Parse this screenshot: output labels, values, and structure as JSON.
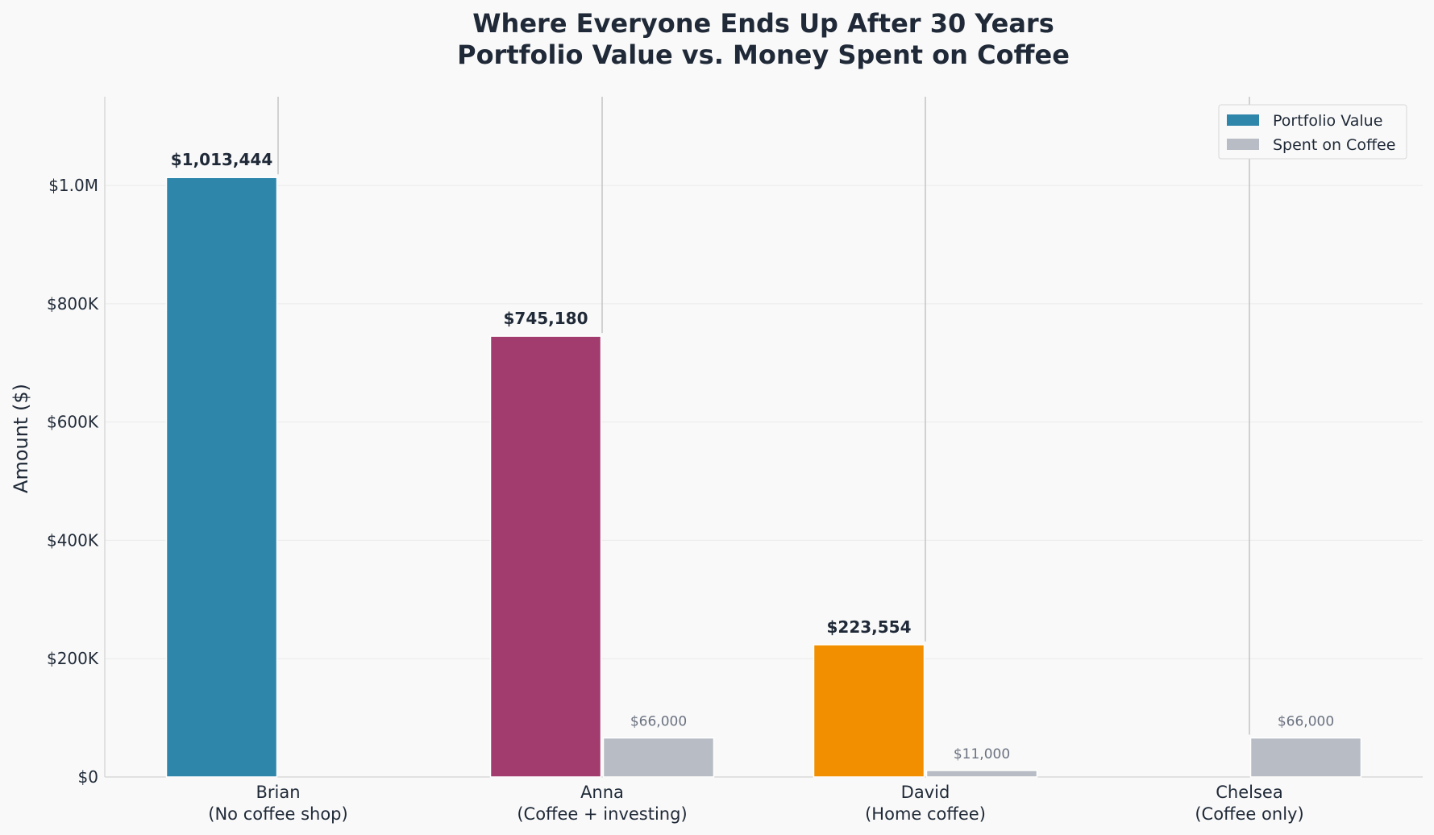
{
  "chart_data": {
    "type": "bar",
    "title_lines": [
      "Where Everyone Ends Up After 30 Years",
      "Portfolio Value vs. Money Spent on Coffee"
    ],
    "xlabel": "",
    "ylabel": "Amount ($)",
    "ylim": [
      0,
      1150000
    ],
    "yticks": [
      {
        "value": 0,
        "label": "$0"
      },
      {
        "value": 200000,
        "label": "$200K"
      },
      {
        "value": 400000,
        "label": "$400K"
      },
      {
        "value": 600000,
        "label": "$600K"
      },
      {
        "value": 800000,
        "label": "$800K"
      },
      {
        "value": 1000000,
        "label": "$1.0M"
      }
    ],
    "categories": [
      {
        "name": "Brian",
        "sub": "(No coffee shop)"
      },
      {
        "name": "Anna",
        "sub": "(Coffee + investing)"
      },
      {
        "name": "David",
        "sub": "(Home coffee)"
      },
      {
        "name": "Chelsea",
        "sub": "(Coffee only)"
      }
    ],
    "series": [
      {
        "name": "Portfolio Value",
        "legend_color": "#2e86ab",
        "colors": [
          "#2e86ab",
          "#a23b6e",
          "#f18f01",
          "#2e86ab"
        ],
        "values": [
          1013444,
          745180,
          223554,
          0
        ],
        "labels": [
          "$1,013,444",
          "$745,180",
          "$223,554",
          ""
        ]
      },
      {
        "name": "Spent on Coffee",
        "legend_color": "#b8bdc5",
        "colors": [
          "#b8bdc5",
          "#b8bdc5",
          "#b8bdc5",
          "#b8bdc5"
        ],
        "values": [
          0,
          66000,
          11000,
          66000
        ],
        "labels": [
          "",
          "$66,000",
          "$11,000",
          "$66,000"
        ]
      }
    ],
    "grid": "y",
    "legend": "top-right"
  }
}
